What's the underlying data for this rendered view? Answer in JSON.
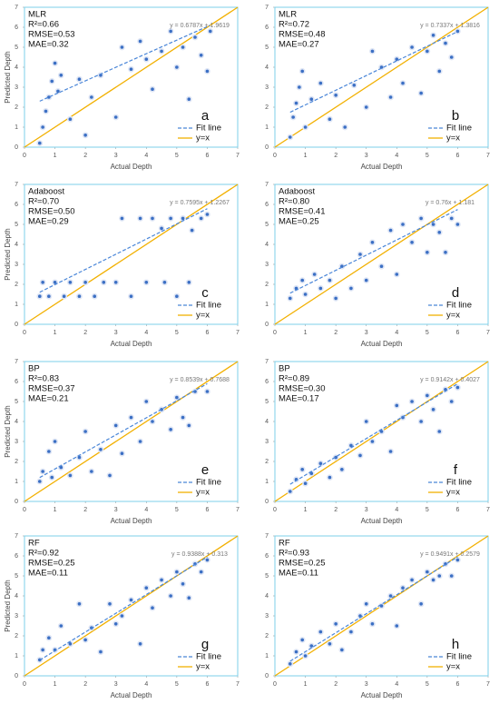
{
  "chart_data": [
    {
      "type": "scatter",
      "label": "MLR",
      "metrics": [
        "R²=0.66",
        "RMSE=0.53",
        "MAE=0.32"
      ],
      "letter": "a",
      "x_label": "Actual Depth",
      "y_label": "Predicted Depth",
      "xlim": [
        0,
        7
      ],
      "ylim": [
        0,
        7
      ],
      "xticks": [
        0,
        1,
        2,
        3,
        4,
        5,
        6,
        7
      ],
      "yticks": [
        0,
        1,
        2,
        3,
        4,
        5,
        6,
        7
      ],
      "point_color": "#3b6fc4",
      "x": [
        0.5,
        0.6,
        0.7,
        0.8,
        0.9,
        1.0,
        1.1,
        1.2,
        1.5,
        1.8,
        2.0,
        2.2,
        2.5,
        3.0,
        3.2,
        3.5,
        3.8,
        4.0,
        4.2,
        4.5,
        4.8,
        5.0,
        5.2,
        5.4,
        5.6,
        5.8,
        6.0,
        6.1
      ],
      "y": [
        0.2,
        1.0,
        1.8,
        2.5,
        3.3,
        4.2,
        2.8,
        3.6,
        1.4,
        3.4,
        0.6,
        2.5,
        3.6,
        1.5,
        5.0,
        3.9,
        5.3,
        4.4,
        2.9,
        4.8,
        5.8,
        4.0,
        5.0,
        2.4,
        5.5,
        4.6,
        3.8,
        5.8
      ],
      "series": [
        {
          "name": "Fit line",
          "color": "#4a86d8",
          "slope": 0.6787,
          "intercept": 1.9619,
          "equation": "y = 0.6787x + 1.9619"
        },
        {
          "name": "y=x",
          "color": "#f2b000"
        }
      ]
    },
    {
      "type": "scatter",
      "label": "MLR",
      "metrics": [
        "R²=0.72",
        "RMSE=0.48",
        "MAE=0.27"
      ],
      "letter": "b",
      "x_label": "Actual Depth",
      "xlim": [
        0,
        7
      ],
      "ylim": [
        0,
        7
      ],
      "xticks": [
        0,
        1,
        2,
        3,
        4,
        5,
        6,
        7
      ],
      "yticks": [
        0,
        1,
        2,
        3,
        4,
        5,
        6,
        7
      ],
      "point_color": "#3b6fc4",
      "x": [
        0.5,
        0.6,
        0.7,
        0.8,
        0.9,
        1.0,
        1.2,
        1.5,
        1.8,
        2.0,
        2.3,
        2.6,
        3.0,
        3.2,
        3.5,
        3.8,
        4.0,
        4.2,
        4.5,
        4.8,
        5.0,
        5.2,
        5.4,
        5.6,
        5.8,
        6.0
      ],
      "y": [
        0.5,
        1.5,
        2.2,
        3.0,
        3.8,
        1.0,
        2.4,
        3.2,
        1.4,
        2.6,
        1.0,
        3.1,
        2.0,
        4.8,
        4.0,
        2.5,
        4.4,
        3.2,
        5.0,
        2.7,
        4.8,
        5.6,
        3.8,
        5.2,
        4.5,
        5.8
      ],
      "series": [
        {
          "name": "Fit line",
          "color": "#4a86d8",
          "slope": 0.7337,
          "intercept": 1.3816,
          "equation": "y = 0.7337x + 1.3816"
        },
        {
          "name": "y=x",
          "color": "#f2b000"
        }
      ]
    },
    {
      "type": "scatter",
      "label": "Adaboost",
      "metrics": [
        "R²=0.70",
        "RMSE=0.50",
        "MAE=0.29"
      ],
      "letter": "c",
      "x_label": "Actual Depth",
      "y_label": "Predicted Depth",
      "xlim": [
        0,
        7
      ],
      "ylim": [
        0,
        7
      ],
      "xticks": [
        0,
        1,
        2,
        3,
        4,
        5,
        6,
        7
      ],
      "yticks": [
        0,
        1,
        2,
        3,
        4,
        5,
        6,
        7
      ],
      "point_color": "#3b6fc4",
      "x": [
        0.5,
        0.6,
        0.8,
        1.0,
        1.3,
        1.5,
        1.8,
        2.0,
        2.3,
        2.6,
        3.0,
        3.2,
        3.5,
        3.8,
        4.0,
        4.2,
        4.5,
        4.6,
        4.8,
        5.0,
        5.2,
        5.4,
        5.5,
        5.8,
        6.0
      ],
      "y": [
        1.4,
        2.1,
        1.4,
        2.1,
        1.4,
        2.1,
        1.4,
        2.1,
        1.4,
        2.1,
        2.1,
        5.3,
        1.4,
        5.3,
        2.1,
        5.3,
        4.8,
        2.1,
        5.3,
        1.4,
        5.3,
        2.1,
        4.7,
        5.3,
        5.5
      ],
      "series": [
        {
          "name": "Fit line",
          "color": "#4a86d8",
          "slope": 0.7595,
          "intercept": 1.2267,
          "equation": "y = 0.7595x + 1.2267"
        },
        {
          "name": "y=x",
          "color": "#f2b000"
        }
      ]
    },
    {
      "type": "scatter",
      "label": "Adaboost",
      "metrics": [
        "R²=0.80",
        "RMSE=0.41",
        "MAE=0.25"
      ],
      "letter": "d",
      "x_label": "Actual Depth",
      "xlim": [
        0,
        7
      ],
      "ylim": [
        0,
        7
      ],
      "xticks": [
        0,
        1,
        2,
        3,
        4,
        5,
        6,
        7
      ],
      "yticks": [
        0,
        1,
        2,
        3,
        4,
        5,
        6,
        7
      ],
      "point_color": "#3b6fc4",
      "x": [
        0.5,
        0.7,
        0.9,
        1.0,
        1.3,
        1.5,
        1.8,
        2.0,
        2.2,
        2.5,
        2.8,
        3.0,
        3.2,
        3.5,
        3.8,
        4.0,
        4.2,
        4.5,
        4.8,
        5.0,
        5.2,
        5.4,
        5.6,
        5.8,
        6.0
      ],
      "y": [
        1.3,
        1.8,
        2.2,
        1.5,
        2.5,
        1.8,
        2.2,
        1.3,
        2.9,
        1.8,
        3.5,
        2.2,
        4.1,
        2.9,
        4.7,
        2.5,
        5.0,
        4.1,
        5.3,
        3.6,
        5.0,
        4.6,
        3.6,
        5.3,
        5.0
      ],
      "series": [
        {
          "name": "Fit line",
          "color": "#4a86d8",
          "slope": 0.76,
          "intercept": 1.181,
          "equation": "y = 0.76x + 1.181"
        },
        {
          "name": "y=x",
          "color": "#f2b000"
        }
      ]
    },
    {
      "type": "scatter",
      "label": "BP",
      "metrics": [
        "R²=0.83",
        "RMSE=0.37",
        "MAE=0.21"
      ],
      "letter": "e",
      "x_label": "Actual Depth",
      "y_label": "Predicted Depth",
      "xlim": [
        0,
        7
      ],
      "ylim": [
        0,
        7
      ],
      "xticks": [
        0,
        1,
        2,
        3,
        4,
        5,
        6,
        7
      ],
      "yticks": [
        0,
        1,
        2,
        3,
        4,
        5,
        6,
        7
      ],
      "point_color": "#3b6fc4",
      "x": [
        0.5,
        0.6,
        0.8,
        0.9,
        1.0,
        1.2,
        1.5,
        1.8,
        2.0,
        2.2,
        2.5,
        2.8,
        3.0,
        3.2,
        3.5,
        3.8,
        4.0,
        4.2,
        4.5,
        4.8,
        5.0,
        5.2,
        5.4,
        5.6,
        6.0
      ],
      "y": [
        1.0,
        1.5,
        2.5,
        1.2,
        3.0,
        1.7,
        1.3,
        2.2,
        3.5,
        1.5,
        2.6,
        1.3,
        3.8,
        2.4,
        4.2,
        3.0,
        5.0,
        4.0,
        4.6,
        3.6,
        5.2,
        4.2,
        3.8,
        5.5,
        5.5
      ],
      "series": [
        {
          "name": "Fit line",
          "color": "#4a86d8",
          "slope": 0.8539,
          "intercept": 0.7688,
          "equation": "y = 0.8539x + 0.7688"
        },
        {
          "name": "y=x",
          "color": "#f2b000"
        }
      ]
    },
    {
      "type": "scatter",
      "label": "BP",
      "metrics": [
        "R²=0.89",
        "RMSE=0.30",
        "MAE=0.17"
      ],
      "letter": "f",
      "x_label": "Actual Depth",
      "xlim": [
        0,
        7
      ],
      "ylim": [
        0,
        7
      ],
      "xticks": [
        0,
        1,
        2,
        3,
        4,
        5,
        6,
        7
      ],
      "yticks": [
        0,
        1,
        2,
        3,
        4,
        5,
        6,
        7
      ],
      "point_color": "#3b6fc4",
      "x": [
        0.5,
        0.7,
        0.9,
        1.0,
        1.2,
        1.5,
        1.8,
        2.0,
        2.2,
        2.5,
        2.8,
        3.0,
        3.2,
        3.5,
        3.8,
        4.0,
        4.2,
        4.5,
        4.8,
        5.0,
        5.2,
        5.4,
        5.6,
        5.8,
        6.0
      ],
      "y": [
        0.5,
        1.1,
        1.6,
        0.9,
        1.4,
        1.9,
        1.2,
        2.2,
        1.6,
        2.8,
        2.3,
        4.0,
        3.0,
        3.5,
        2.5,
        4.8,
        4.2,
        5.0,
        4.0,
        5.3,
        4.6,
        3.5,
        5.6,
        5.0,
        5.7
      ],
      "series": [
        {
          "name": "Fit line",
          "color": "#4a86d8",
          "slope": 0.9142,
          "intercept": 0.4027,
          "equation": "y = 0.9142x + 0.4027"
        },
        {
          "name": "y=x",
          "color": "#f2b000"
        }
      ]
    },
    {
      "type": "scatter",
      "label": "RF",
      "metrics": [
        "R²=0.92",
        "RMSE=0.25",
        "MAE=0.11"
      ],
      "letter": "g",
      "x_label": "Actual Depth",
      "y_label": "Predicted Depth",
      "xlim": [
        0,
        7
      ],
      "ylim": [
        0,
        7
      ],
      "xticks": [
        0,
        1,
        2,
        3,
        4,
        5,
        6,
        7
      ],
      "yticks": [
        0,
        1,
        2,
        3,
        4,
        5,
        6,
        7
      ],
      "point_color": "#3b6fc4",
      "x": [
        0.5,
        0.6,
        0.8,
        1.0,
        1.2,
        1.5,
        1.8,
        2.0,
        2.2,
        2.5,
        2.8,
        3.0,
        3.2,
        3.5,
        3.8,
        4.0,
        4.2,
        4.5,
        4.8,
        5.0,
        5.2,
        5.4,
        5.6,
        5.8,
        6.0
      ],
      "y": [
        0.8,
        1.3,
        1.9,
        1.3,
        2.5,
        1.6,
        3.6,
        1.8,
        2.4,
        1.2,
        3.6,
        2.6,
        3.0,
        3.8,
        1.6,
        4.4,
        3.4,
        4.8,
        4.0,
        5.2,
        4.6,
        3.9,
        5.6,
        5.2,
        5.8
      ],
      "series": [
        {
          "name": "Fit line",
          "color": "#4a86d8",
          "slope": 0.9388,
          "intercept": 0.313,
          "equation": "y = 0.9388x + 0.313"
        },
        {
          "name": "y=x",
          "color": "#f2b000"
        }
      ]
    },
    {
      "type": "scatter",
      "label": "RF",
      "metrics": [
        "R²=0.93",
        "RMSE=0.25",
        "MAE=0.11"
      ],
      "letter": "h",
      "x_label": "Actual Depth",
      "xlim": [
        0,
        7
      ],
      "ylim": [
        0,
        7
      ],
      "xticks": [
        0,
        1,
        2,
        3,
        4,
        5,
        6,
        7
      ],
      "yticks": [
        0,
        1,
        2,
        3,
        4,
        5,
        6,
        7
      ],
      "point_color": "#3b6fc4",
      "x": [
        0.5,
        0.7,
        0.9,
        1.0,
        1.2,
        1.5,
        1.8,
        2.0,
        2.2,
        2.5,
        2.8,
        3.0,
        3.2,
        3.5,
        3.8,
        4.0,
        4.2,
        4.5,
        4.8,
        5.0,
        5.2,
        5.4,
        5.6,
        5.8,
        6.0
      ],
      "y": [
        0.6,
        1.2,
        1.8,
        1.0,
        1.5,
        2.2,
        1.6,
        2.6,
        1.3,
        2.2,
        3.0,
        3.6,
        2.6,
        3.5,
        4.0,
        2.5,
        4.4,
        4.8,
        3.6,
        5.2,
        4.8,
        5.0,
        5.6,
        5.0,
        5.8
      ],
      "series": [
        {
          "name": "Fit line",
          "color": "#4a86d8",
          "slope": 0.9491,
          "intercept": 0.2579,
          "equation": "y = 0.9491x + 0.2579"
        },
        {
          "name": "y=x",
          "color": "#f2b000"
        }
      ]
    }
  ]
}
